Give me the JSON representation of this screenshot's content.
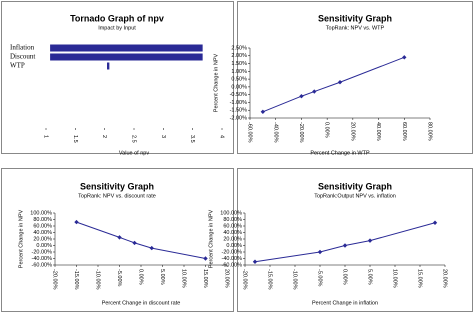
{
  "chart_data": [
    {
      "type": "tornado",
      "title": "Tornado Graph of npv",
      "subtitle": "Impact by Input",
      "categories": [
        "Inflation",
        "Discount",
        "WTP"
      ],
      "ranges": [
        [
          1.07,
          3.67
        ],
        [
          1.07,
          3.67
        ],
        [
          2.04,
          2.08
        ]
      ],
      "color": "#2a2a96",
      "xlabel": "Value of npv",
      "xlim": [
        1,
        4
      ],
      "xticks": [
        1,
        1.5,
        2,
        2.5,
        3,
        3.5,
        4
      ]
    },
    {
      "type": "line",
      "title": "Sensitivity Graph",
      "subtitle": "TopRank: NPV vs. WTP",
      "xlabel": "Percent Change in WTP",
      "ylabel": "Percent Change in NPV",
      "color": "#2a2a96",
      "x": [
        -50,
        -20,
        -10,
        10,
        60
      ],
      "values": [
        -1.6,
        -0.6,
        -0.3,
        0.3,
        1.9
      ],
      "xlim": [
        -60,
        80
      ],
      "ylim": [
        -2,
        2.5
      ],
      "xticks": [
        {
          "value": -60,
          "label": "-60.00%"
        },
        {
          "value": -40,
          "label": "-40.00%"
        },
        {
          "value": -20,
          "label": "-20.00%"
        },
        {
          "value": 0,
          "label": "0.00%"
        },
        {
          "value": 20,
          "label": "20.00%"
        },
        {
          "value": 40,
          "label": "40.00%"
        },
        {
          "value": 60,
          "label": "60.00%"
        },
        {
          "value": 80,
          "label": "80.00%"
        }
      ],
      "yticks": [
        {
          "value": 2.5,
          "label": "2.50%"
        },
        {
          "value": 2,
          "label": "2.00%"
        },
        {
          "value": 1.5,
          "label": "1.50%"
        },
        {
          "value": 1,
          "label": "1.00%"
        },
        {
          "value": 0.5,
          "label": "0.50%"
        },
        {
          "value": 0,
          "label": "0.00%"
        },
        {
          "value": -0.5,
          "label": "-0.50%"
        },
        {
          "value": -1,
          "label": "-1.00%"
        },
        {
          "value": -1.5,
          "label": "-1.50%"
        },
        {
          "value": -2,
          "label": "-2.00%"
        }
      ]
    },
    {
      "type": "line",
      "title": "Sensitivity Graph",
      "subtitle": "TopRank: NPV vs. discount rate",
      "xlabel": "Percent Change in discount rate",
      "ylabel": "Percent Change in NPV",
      "color": "#2a2a96",
      "x": [
        -15,
        -5,
        -1.5,
        2.5,
        15
      ],
      "values": [
        72,
        25,
        8,
        -8,
        -40
      ],
      "xlim": [
        -20,
        20
      ],
      "ylim": [
        -60,
        100
      ],
      "xticks": [
        {
          "value": -20,
          "label": "-20.00%"
        },
        {
          "value": -15,
          "label": "-15.00%"
        },
        {
          "value": -10,
          "label": "-10.00%"
        },
        {
          "value": -5,
          "label": "-5.00%"
        },
        {
          "value": 0,
          "label": "0.00%"
        },
        {
          "value": 5,
          "label": "5.00%"
        },
        {
          "value": 10,
          "label": "10.00%"
        },
        {
          "value": 15,
          "label": "15.00%"
        },
        {
          "value": 20,
          "label": "20.00%"
        }
      ],
      "yticks": [
        {
          "value": 100,
          "label": "100.00%"
        },
        {
          "value": 80,
          "label": "80.00%"
        },
        {
          "value": 60,
          "label": "60.00%"
        },
        {
          "value": 40,
          "label": "40.00%"
        },
        {
          "value": 20,
          "label": "20.00%"
        },
        {
          "value": 0,
          "label": "0.00%"
        },
        {
          "value": -20,
          "label": "-20.00%"
        },
        {
          "value": -40,
          "label": "-40.00%"
        },
        {
          "value": -60,
          "label": "-60.00%"
        }
      ]
    },
    {
      "type": "line",
      "title": "Sensitivity Graph",
      "subtitle": "TopRank:Output NPV vs. inflation",
      "xlabel": "Percent Change in inflation",
      "ylabel": "Percent Change in NPV",
      "color": "#2a2a96",
      "x": [
        -18,
        -5,
        0,
        5,
        18
      ],
      "values": [
        -50,
        -20,
        0,
        15,
        70
      ],
      "xlim": [
        -20,
        20
      ],
      "ylim": [
        -60,
        100
      ],
      "xticks": [
        {
          "value": -20,
          "label": "-20.00%"
        },
        {
          "value": -15,
          "label": "-15.00%"
        },
        {
          "value": -10,
          "label": "-10.00%"
        },
        {
          "value": -5,
          "label": "-5.00%"
        },
        {
          "value": 0,
          "label": "0.00%"
        },
        {
          "value": 5,
          "label": "5.00%"
        },
        {
          "value": 10,
          "label": "10.00%"
        },
        {
          "value": 15,
          "label": "15.00%"
        },
        {
          "value": 20,
          "label": "20.00%"
        }
      ],
      "yticks": [
        {
          "value": 100,
          "label": "100.00%"
        },
        {
          "value": 80,
          "label": "80.00%"
        },
        {
          "value": 60,
          "label": "60.00%"
        },
        {
          "value": 40,
          "label": "40.00%"
        },
        {
          "value": 20,
          "label": "20.00%"
        },
        {
          "value": 0,
          "label": "0.00%"
        },
        {
          "value": -20,
          "label": "-20.00%"
        },
        {
          "value": -40,
          "label": "-40.00%"
        },
        {
          "value": -60,
          "label": "-60.00%"
        }
      ]
    }
  ]
}
